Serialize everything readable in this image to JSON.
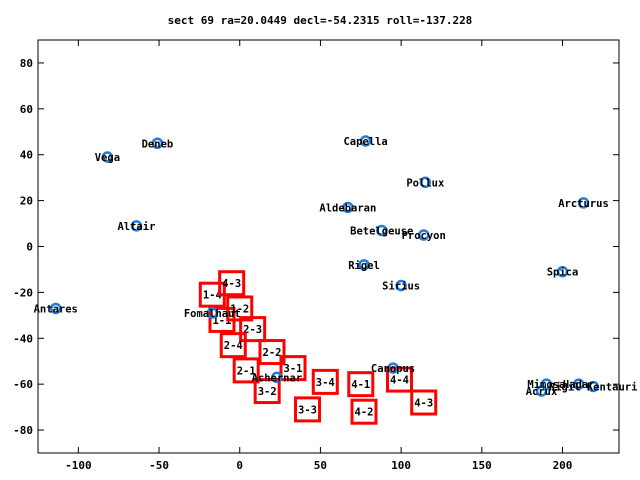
{
  "chart_data": {
    "type": "scatter",
    "title": "sect 69 ra=20.0449 decl=-54.2315 roll=-137.228",
    "xlabel": "",
    "ylabel": "",
    "xlim": [
      -125,
      235
    ],
    "ylim": [
      -90,
      90
    ],
    "x_ticks": [
      -100,
      -50,
      0,
      50,
      100,
      150,
      200
    ],
    "y_ticks": [
      -80,
      -60,
      -40,
      -20,
      0,
      20,
      40,
      60,
      80
    ],
    "grid": false,
    "legend": "none",
    "colors": {
      "stars": "#1e7fe0",
      "boxes": "#ff0000",
      "text": "#000000"
    },
    "stars": [
      {
        "name": "Vega",
        "x": -82,
        "y": 39
      },
      {
        "name": "Deneb",
        "x": -51,
        "y": 45
      },
      {
        "name": "Altair",
        "x": -64,
        "y": 9
      },
      {
        "name": "Antares",
        "x": -114,
        "y": -27
      },
      {
        "name": "Fomalhaut",
        "x": -17,
        "y": -29
      },
      {
        "name": "Capella",
        "x": 78,
        "y": 46
      },
      {
        "name": "Pollux",
        "x": 115,
        "y": 28
      },
      {
        "name": "Aldebaran",
        "x": 67,
        "y": 17
      },
      {
        "name": "Betelgeuse",
        "x": 88,
        "y": 7
      },
      {
        "name": "Procyon",
        "x": 114,
        "y": 5
      },
      {
        "name": "Rigel",
        "x": 77,
        "y": -8
      },
      {
        "name": "Sirius",
        "x": 100,
        "y": -17
      },
      {
        "name": "Achernar",
        "x": 23,
        "y": -57
      },
      {
        "name": "Canopus",
        "x": 95,
        "y": -53
      },
      {
        "name": "Arcturus",
        "x": 213,
        "y": 19
      },
      {
        "name": "Spica",
        "x": 200,
        "y": -11
      },
      {
        "name": "Mimosa",
        "x": 190,
        "y": -60
      },
      {
        "name": "Hadar",
        "x": 210,
        "y": -60
      },
      {
        "name": "Acrux",
        "x": 187,
        "y": -63
      },
      {
        "name": "Rigil Kentauri",
        "x": 219,
        "y": -61
      }
    ],
    "boxes": [
      {
        "label": "1-4",
        "x": -17,
        "y": -21
      },
      {
        "label": "4-3",
        "x": -5,
        "y": -16
      },
      {
        "label": "1-1",
        "x": -11,
        "y": -32
      },
      {
        "label": "1-2",
        "x": 0,
        "y": -27
      },
      {
        "label": "2-3",
        "x": 8,
        "y": -36
      },
      {
        "label": "2-4",
        "x": -4,
        "y": -43
      },
      {
        "label": "2-2",
        "x": 20,
        "y": -46
      },
      {
        "label": "2-1",
        "x": 4,
        "y": -54
      },
      {
        "label": "3-1",
        "x": 33,
        "y": -53
      },
      {
        "label": "3-2",
        "x": 17,
        "y": -63
      },
      {
        "label": "3-4",
        "x": 53,
        "y": -59
      },
      {
        "label": "3-3",
        "x": 42,
        "y": -71
      },
      {
        "label": "4-1",
        "x": 75,
        "y": -60
      },
      {
        "label": "4-4",
        "x": 99,
        "y": -58
      },
      {
        "label": "4-2",
        "x": 77,
        "y": -72
      },
      {
        "label": "4-3",
        "x": 114,
        "y": -68
      }
    ]
  }
}
